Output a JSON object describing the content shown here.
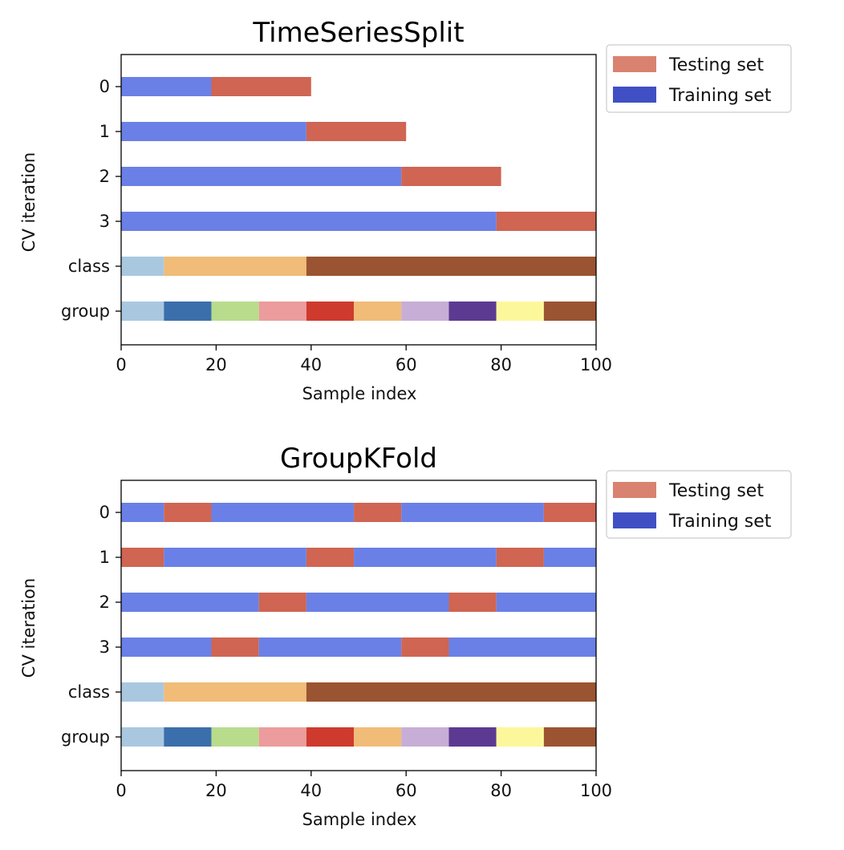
{
  "colors": {
    "training": "#6a80e6",
    "testing": "#cf6552",
    "legend_training": "#4050c4",
    "legend_testing": "#d9826f"
  },
  "chart_data": [
    {
      "type": "bar",
      "title": "TimeSeriesSplit",
      "xlabel": "Sample index",
      "ylabel": "CV iteration",
      "xlim": [
        0,
        100
      ],
      "xticks": [
        "0",
        "20",
        "40",
        "60",
        "80",
        "100"
      ],
      "rows": [
        "0",
        "1",
        "2",
        "3",
        "class",
        "group"
      ],
      "legend": [
        "Testing set",
        "Training set"
      ],
      "legend_position": "outside-top-right",
      "grid": false,
      "cv_iterations": [
        [
          {
            "start": 0,
            "end": 19,
            "set": "train"
          },
          {
            "start": 19,
            "end": 40,
            "set": "test"
          }
        ],
        [
          {
            "start": 0,
            "end": 39,
            "set": "train"
          },
          {
            "start": 39,
            "end": 60,
            "set": "test"
          }
        ],
        [
          {
            "start": 0,
            "end": 59,
            "set": "train"
          },
          {
            "start": 59,
            "end": 80,
            "set": "test"
          }
        ],
        [
          {
            "start": 0,
            "end": 79,
            "set": "train"
          },
          {
            "start": 79,
            "end": 100,
            "set": "test"
          }
        ]
      ],
      "class": [
        {
          "start": 0,
          "end": 9,
          "color": "#a9c8e0"
        },
        {
          "start": 9,
          "end": 39,
          "color": "#f0bc78"
        },
        {
          "start": 39,
          "end": 100,
          "color": "#9b5431"
        }
      ],
      "group": [
        {
          "start": 0,
          "end": 9,
          "color": "#a9c8e0"
        },
        {
          "start": 9,
          "end": 19,
          "color": "#3b6fab"
        },
        {
          "start": 19,
          "end": 29,
          "color": "#b8dc8c"
        },
        {
          "start": 29,
          "end": 39,
          "color": "#ec9c9c"
        },
        {
          "start": 39,
          "end": 49,
          "color": "#cf3a2e"
        },
        {
          "start": 49,
          "end": 59,
          "color": "#f0bc78"
        },
        {
          "start": 59,
          "end": 69,
          "color": "#c6aed6"
        },
        {
          "start": 69,
          "end": 79,
          "color": "#5c3a92"
        },
        {
          "start": 79,
          "end": 89,
          "color": "#fdf79c"
        },
        {
          "start": 89,
          "end": 100,
          "color": "#9b5431"
        }
      ]
    },
    {
      "type": "bar",
      "title": "GroupKFold",
      "xlabel": "Sample index",
      "ylabel": "CV iteration",
      "xlim": [
        0,
        100
      ],
      "xticks": [
        "0",
        "20",
        "40",
        "60",
        "80",
        "100"
      ],
      "rows": [
        "0",
        "1",
        "2",
        "3",
        "class",
        "group"
      ],
      "legend": [
        "Testing set",
        "Training set"
      ],
      "legend_position": "outside-top-right",
      "grid": false,
      "cv_iterations": [
        [
          {
            "start": 0,
            "end": 9,
            "set": "train"
          },
          {
            "start": 9,
            "end": 19,
            "set": "test"
          },
          {
            "start": 19,
            "end": 49,
            "set": "train"
          },
          {
            "start": 49,
            "end": 59,
            "set": "test"
          },
          {
            "start": 59,
            "end": 89,
            "set": "train"
          },
          {
            "start": 89,
            "end": 100,
            "set": "test"
          }
        ],
        [
          {
            "start": 0,
            "end": 9,
            "set": "test"
          },
          {
            "start": 9,
            "end": 39,
            "set": "train"
          },
          {
            "start": 39,
            "end": 49,
            "set": "test"
          },
          {
            "start": 49,
            "end": 79,
            "set": "train"
          },
          {
            "start": 79,
            "end": 89,
            "set": "test"
          },
          {
            "start": 89,
            "end": 100,
            "set": "train"
          }
        ],
        [
          {
            "start": 0,
            "end": 29,
            "set": "train"
          },
          {
            "start": 29,
            "end": 39,
            "set": "test"
          },
          {
            "start": 39,
            "end": 69,
            "set": "train"
          },
          {
            "start": 69,
            "end": 79,
            "set": "test"
          },
          {
            "start": 79,
            "end": 100,
            "set": "train"
          }
        ],
        [
          {
            "start": 0,
            "end": 19,
            "set": "train"
          },
          {
            "start": 19,
            "end": 29,
            "set": "test"
          },
          {
            "start": 29,
            "end": 59,
            "set": "train"
          },
          {
            "start": 59,
            "end": 69,
            "set": "test"
          },
          {
            "start": 69,
            "end": 100,
            "set": "train"
          }
        ]
      ],
      "class": [
        {
          "start": 0,
          "end": 9,
          "color": "#a9c8e0"
        },
        {
          "start": 9,
          "end": 39,
          "color": "#f0bc78"
        },
        {
          "start": 39,
          "end": 100,
          "color": "#9b5431"
        }
      ],
      "group": [
        {
          "start": 0,
          "end": 9,
          "color": "#a9c8e0"
        },
        {
          "start": 9,
          "end": 19,
          "color": "#3b6fab"
        },
        {
          "start": 19,
          "end": 29,
          "color": "#b8dc8c"
        },
        {
          "start": 29,
          "end": 39,
          "color": "#ec9c9c"
        },
        {
          "start": 39,
          "end": 49,
          "color": "#cf3a2e"
        },
        {
          "start": 49,
          "end": 59,
          "color": "#f0bc78"
        },
        {
          "start": 59,
          "end": 69,
          "color": "#c6aed6"
        },
        {
          "start": 69,
          "end": 79,
          "color": "#5c3a92"
        },
        {
          "start": 79,
          "end": 89,
          "color": "#fdf79c"
        },
        {
          "start": 89,
          "end": 100,
          "color": "#9b5431"
        }
      ]
    }
  ]
}
